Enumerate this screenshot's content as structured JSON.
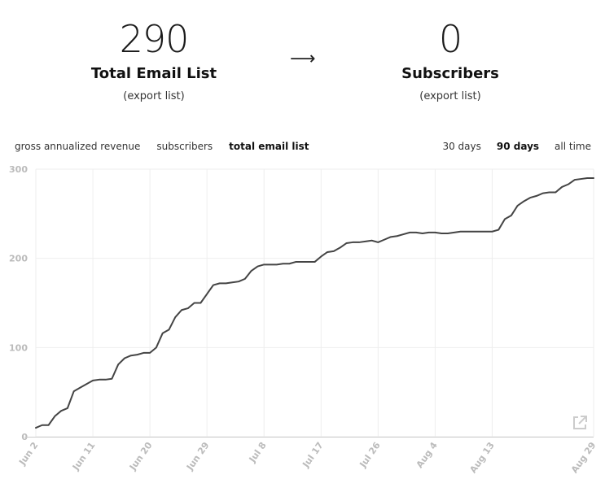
{
  "left_stat": {
    "value": "290",
    "label": "Total Email List",
    "link": "(export list)"
  },
  "arrow": "⟶",
  "right_stat": {
    "value": "0",
    "label": "Subscribers",
    "link": "(export list)"
  },
  "metric_tabs": [
    {
      "label": "gross annualized revenue",
      "active": false
    },
    {
      "label": "subscribers",
      "active": false
    },
    {
      "label": "total email list",
      "active": true
    }
  ],
  "range_tabs": [
    {
      "label": "30 days",
      "active": false
    },
    {
      "label": "90 days",
      "active": true
    },
    {
      "label": "all time",
      "active": false
    }
  ],
  "icons": {
    "external": "external-link-icon"
  },
  "colors": {
    "line": "#444444",
    "grid": "#eeeeee",
    "axis_text": "#bbbbbb"
  },
  "chart_data": {
    "type": "line",
    "title": "",
    "xlabel": "",
    "ylabel": "",
    "ylim": [
      0,
      300
    ],
    "yticks": [
      0,
      100,
      200,
      300
    ],
    "grid": true,
    "x_tick_labels": [
      "Jun 2",
      "Jun 11",
      "Jun 20",
      "Jun 29",
      "Jul 8",
      "Jul 17",
      "Jul 26",
      "Aug 4",
      "Aug 13",
      "Aug 29"
    ],
    "series": [
      {
        "values": [
          10,
          13,
          13,
          23,
          29,
          32,
          51,
          55,
          59,
          63,
          64,
          64,
          65,
          81,
          88,
          91,
          92,
          94,
          94,
          100,
          116,
          120,
          134,
          142,
          144,
          150,
          150,
          160,
          170,
          172,
          172,
          173,
          174,
          177,
          186,
          191,
          193,
          193,
          193,
          194,
          194,
          196,
          196,
          196,
          196,
          202,
          207,
          208,
          212,
          217,
          218,
          218,
          219,
          220,
          218,
          221,
          224,
          225,
          227,
          229,
          229,
          228,
          229,
          229,
          228,
          228,
          229,
          230,
          230,
          230,
          230,
          230,
          230,
          232,
          244,
          248,
          259,
          264,
          268,
          270,
          273,
          274,
          274,
          280,
          283,
          288,
          289,
          290,
          290
        ]
      }
    ]
  }
}
